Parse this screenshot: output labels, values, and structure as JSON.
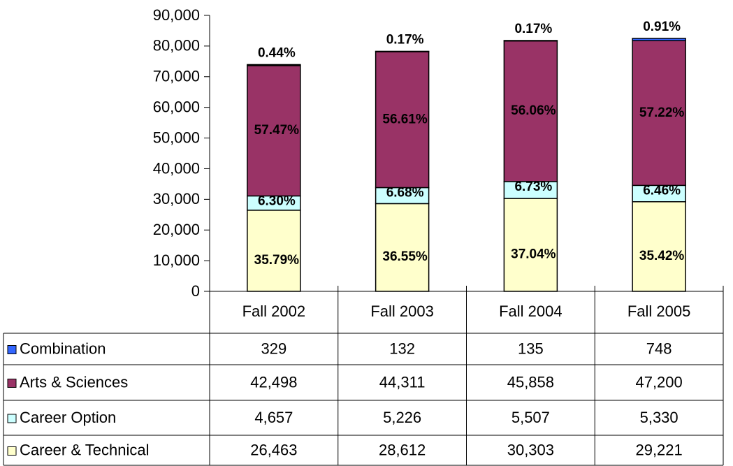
{
  "chart_data": {
    "type": "stacked_bar",
    "categories": [
      "Fall 2002",
      "Fall 2003",
      "Fall 2004",
      "Fall 2005"
    ],
    "series": [
      {
        "name": "Career & Technical",
        "color": "#ffffcc",
        "values": [
          26463,
          28612,
          30303,
          29221
        ],
        "value_labels": [
          "26,463",
          "28,612",
          "30,303",
          "29,221"
        ],
        "share_labels": [
          "35.79%",
          "36.55%",
          "37.04%",
          "35.42%"
        ]
      },
      {
        "name": "Career Option",
        "color": "#ccffff",
        "values": [
          4657,
          5226,
          5507,
          5330
        ],
        "value_labels": [
          "4,657",
          "5,226",
          "5,507",
          "5,330"
        ],
        "share_labels": [
          "6.30%",
          "6.68%",
          "6.73%",
          "6.46%"
        ]
      },
      {
        "name": "Arts & Sciences",
        "color": "#993366",
        "values": [
          42498,
          44311,
          45858,
          47200
        ],
        "value_labels": [
          "42,498",
          "44,311",
          "45,858",
          "47,200"
        ],
        "share_labels": [
          "57.47%",
          "56.61%",
          "56.06%",
          "57.22%"
        ]
      },
      {
        "name": "Combination",
        "color": "#3366ff",
        "values": [
          329,
          132,
          135,
          748
        ],
        "value_labels": [
          "329",
          "132",
          "135",
          "748"
        ],
        "share_labels": [
          "0.44%",
          "0.17%",
          "0.17%",
          "0.91%"
        ]
      }
    ],
    "ylim": [
      0,
      90000
    ],
    "yticks": [
      0,
      {
        "value": 10000,
        "label": "10,000"
      },
      {
        "value": 20000,
        "label": "20,000"
      },
      {
        "value": 30000,
        "label": "30,000"
      },
      {
        "value": 40000,
        "label": "40,000"
      },
      {
        "value": 50000,
        "label": "50,000"
      },
      {
        "value": 60000,
        "label": "60,000"
      },
      {
        "value": 70000,
        "label": "70,000"
      },
      {
        "value": 80000,
        "label": "80,000"
      },
      {
        "value": 90000,
        "label": "90,000"
      }
    ]
  }
}
